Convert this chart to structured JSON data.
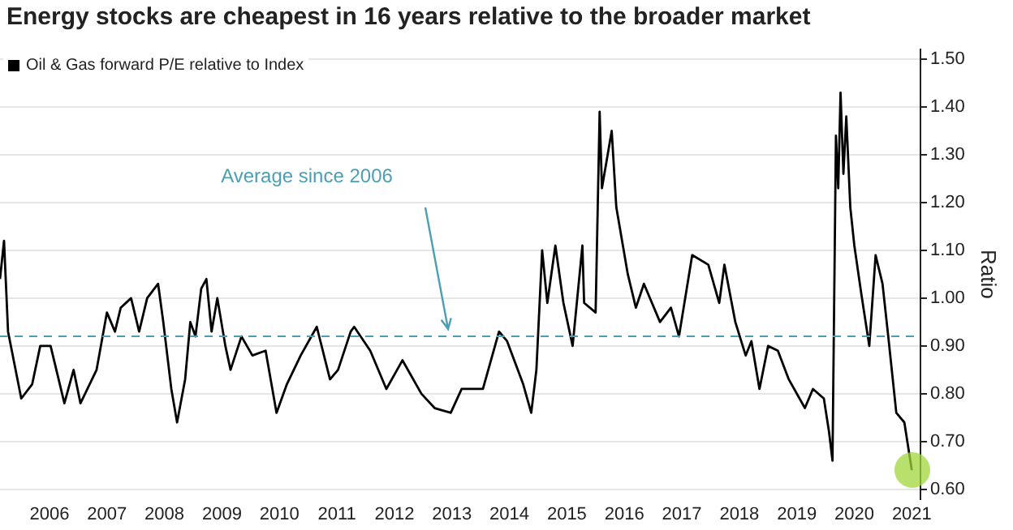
{
  "chart_data": {
    "type": "line",
    "title": "Energy stocks are cheapest in 16 years relative to the broader market",
    "ylabel": "Ratio",
    "x": [
      2005.64,
      2005.71,
      2005.78,
      2006.01,
      2006.2,
      2006.34,
      2006.52,
      2006.76,
      2006.92,
      2007.04,
      2007.32,
      2007.5,
      2007.64,
      2007.74,
      2007.92,
      2008.06,
      2008.2,
      2008.39,
      2008.48,
      2008.62,
      2008.72,
      2008.86,
      2008.95,
      2009.04,
      2009.14,
      2009.23,
      2009.32,
      2009.42,
      2009.56,
      2009.65,
      2009.84,
      2010.03,
      2010.26,
      2010.45,
      2010.63,
      2010.87,
      2011.15,
      2011.38,
      2011.52,
      2011.74,
      2011.8,
      2012.08,
      2012.36,
      2012.64,
      2012.97,
      2013.2,
      2013.48,
      2013.67,
      2014.04,
      2014.32,
      2014.46,
      2014.74,
      2014.88,
      2014.97,
      2015.07,
      2015.16,
      2015.3,
      2015.44,
      2015.6,
      2015.77,
      2015.8,
      2016.0,
      2016.07,
      2016.11,
      2016.28,
      2016.36,
      2016.56,
      2016.7,
      2016.84,
      2017.12,
      2017.31,
      2017.45,
      2017.68,
      2017.96,
      2018.15,
      2018.24,
      2018.43,
      2018.61,
      2018.71,
      2018.85,
      2019.0,
      2019.17,
      2019.36,
      2019.64,
      2019.78,
      2019.97,
      2020.06,
      2020.12,
      2020.18,
      2020.22,
      2020.26,
      2020.31,
      2020.36,
      2020.43,
      2020.5,
      2020.62,
      2020.76,
      2020.87,
      2020.99,
      2021.09,
      2021.23,
      2021.37,
      2021.5
    ],
    "series": [
      {
        "name": "Oil & Gas forward P/E relative to Index",
        "color": "#000000",
        "values": [
          1.04,
          1.12,
          0.93,
          0.79,
          0.82,
          0.9,
          0.9,
          0.78,
          0.85,
          0.78,
          0.85,
          0.97,
          0.93,
          0.98,
          1.0,
          0.93,
          1.0,
          1.03,
          0.95,
          0.81,
          0.74,
          0.83,
          0.95,
          0.92,
          1.02,
          1.04,
          0.93,
          1.0,
          0.9,
          0.85,
          0.92,
          0.88,
          0.89,
          0.76,
          0.82,
          0.88,
          0.94,
          0.83,
          0.85,
          0.93,
          0.94,
          0.89,
          0.81,
          0.87,
          0.8,
          0.77,
          0.76,
          0.81,
          0.81,
          0.93,
          0.91,
          0.82,
          0.76,
          0.85,
          1.1,
          0.99,
          1.11,
          0.99,
          0.9,
          1.11,
          0.99,
          0.97,
          1.39,
          1.23,
          1.35,
          1.19,
          1.05,
          0.98,
          1.03,
          0.95,
          0.98,
          0.92,
          1.09,
          1.07,
          0.99,
          1.07,
          0.95,
          0.88,
          0.91,
          0.81,
          0.9,
          0.89,
          0.83,
          0.77,
          0.81,
          0.79,
          0.72,
          0.66,
          1.34,
          1.23,
          1.43,
          1.26,
          1.38,
          1.19,
          1.11,
          1.01,
          0.9,
          1.09,
          1.03,
          0.92,
          0.76,
          0.74,
          0.64
        ]
      }
    ],
    "xlim": [
      2005.64,
      2021.65
    ],
    "xticks": [
      {
        "value": 2006.5,
        "label": "2006"
      },
      {
        "value": 2007.5,
        "label": "2007"
      },
      {
        "value": 2008.5,
        "label": "2008"
      },
      {
        "value": 2009.5,
        "label": "2009"
      },
      {
        "value": 2010.5,
        "label": "2010"
      },
      {
        "value": 2011.5,
        "label": "2011"
      },
      {
        "value": 2012.5,
        "label": "2012"
      },
      {
        "value": 2013.5,
        "label": "2013"
      },
      {
        "value": 2014.5,
        "label": "2014"
      },
      {
        "value": 2015.5,
        "label": "2015"
      },
      {
        "value": 2016.5,
        "label": "2016"
      },
      {
        "value": 2017.5,
        "label": "2017"
      },
      {
        "value": 2018.5,
        "label": "2018"
      },
      {
        "value": 2019.5,
        "label": "2019"
      },
      {
        "value": 2020.5,
        "label": "2020"
      },
      {
        "value": 2021.5,
        "label": "2021"
      }
    ],
    "ylim": [
      0.58,
      1.52
    ],
    "yticks": [
      {
        "value": 0.6,
        "label": "0.60"
      },
      {
        "value": 0.7,
        "label": "0.70"
      },
      {
        "value": 0.8,
        "label": "0.80"
      },
      {
        "value": 0.9,
        "label": "0.90"
      },
      {
        "value": 1.0,
        "label": "1.00"
      },
      {
        "value": 1.1,
        "label": "1.10"
      },
      {
        "value": 1.2,
        "label": "1.20"
      },
      {
        "value": 1.3,
        "label": "1.30"
      },
      {
        "value": 1.4,
        "label": "1.40"
      },
      {
        "value": 1.5,
        "label": "1.50"
      }
    ],
    "ref_lines": [
      {
        "axis": "y",
        "value": 0.92,
        "label": "Average since 2006",
        "color": "#4a9fb5",
        "line_style": "dashed"
      }
    ],
    "grid": "y",
    "legend": "top left",
    "marker": "none",
    "line_style": "solid"
  }
}
